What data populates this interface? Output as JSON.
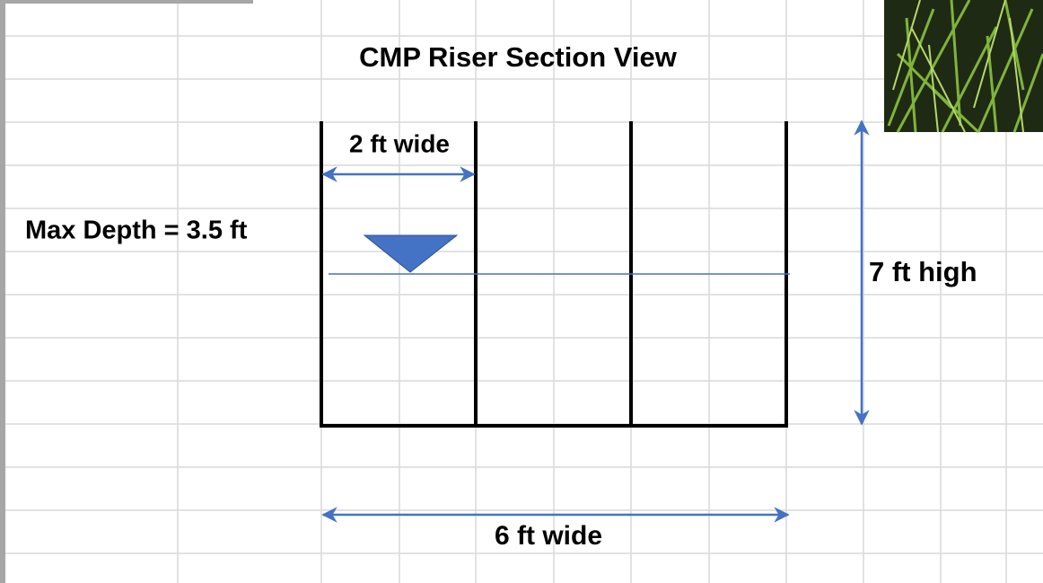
{
  "diagram": {
    "title": "CMP Riser Section View",
    "top_width_label": "2 ft wide",
    "depth_label": "Max Depth = 3.5 ft",
    "height_label": "7 ft high",
    "bottom_width_label": "6 ft wide"
  }
}
